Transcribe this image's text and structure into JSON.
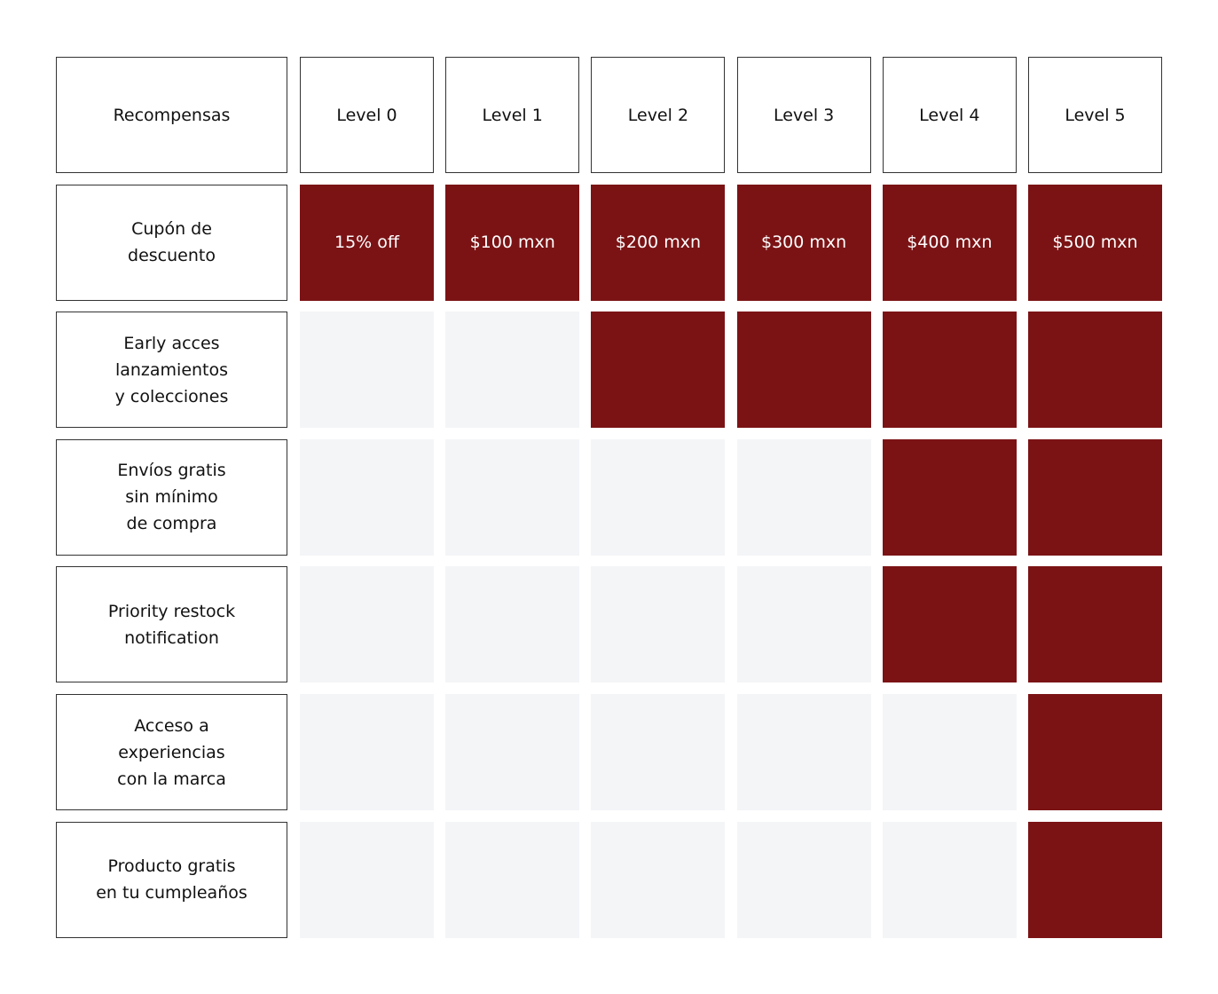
{
  "header": {
    "title": "Recompensas",
    "levels": [
      "Level 0",
      "Level 1",
      "Level 2",
      "Level 3",
      "Level 4",
      "Level 5"
    ]
  },
  "rows": [
    {
      "label_lines": [
        "Cupón de",
        "descuento"
      ],
      "included": [
        true,
        true,
        true,
        true,
        true,
        true
      ],
      "cell_texts": [
        "15% off",
        "$100 mxn",
        "$200 mxn",
        "$300 mxn",
        "$400 mxn",
        "$500 mxn"
      ]
    },
    {
      "label_lines": [
        "Early acces",
        "lanzamientos",
        "y colecciones"
      ],
      "included": [
        false,
        false,
        true,
        true,
        true,
        true
      ]
    },
    {
      "label_lines": [
        "Envíos gratis",
        "sin mínimo",
        "de compra"
      ],
      "included": [
        false,
        false,
        false,
        false,
        true,
        true
      ]
    },
    {
      "label_lines": [
        "Priority restock",
        "notification"
      ],
      "included": [
        false,
        false,
        false,
        false,
        true,
        true
      ]
    },
    {
      "label_lines": [
        "Acceso a",
        "experiencias",
        "con la marca"
      ],
      "included": [
        false,
        false,
        false,
        false,
        false,
        true
      ]
    },
    {
      "label_lines": [
        "Producto gratis",
        "en tu cumpleaños"
      ],
      "included": [
        false,
        false,
        false,
        false,
        false,
        true
      ]
    }
  ]
}
